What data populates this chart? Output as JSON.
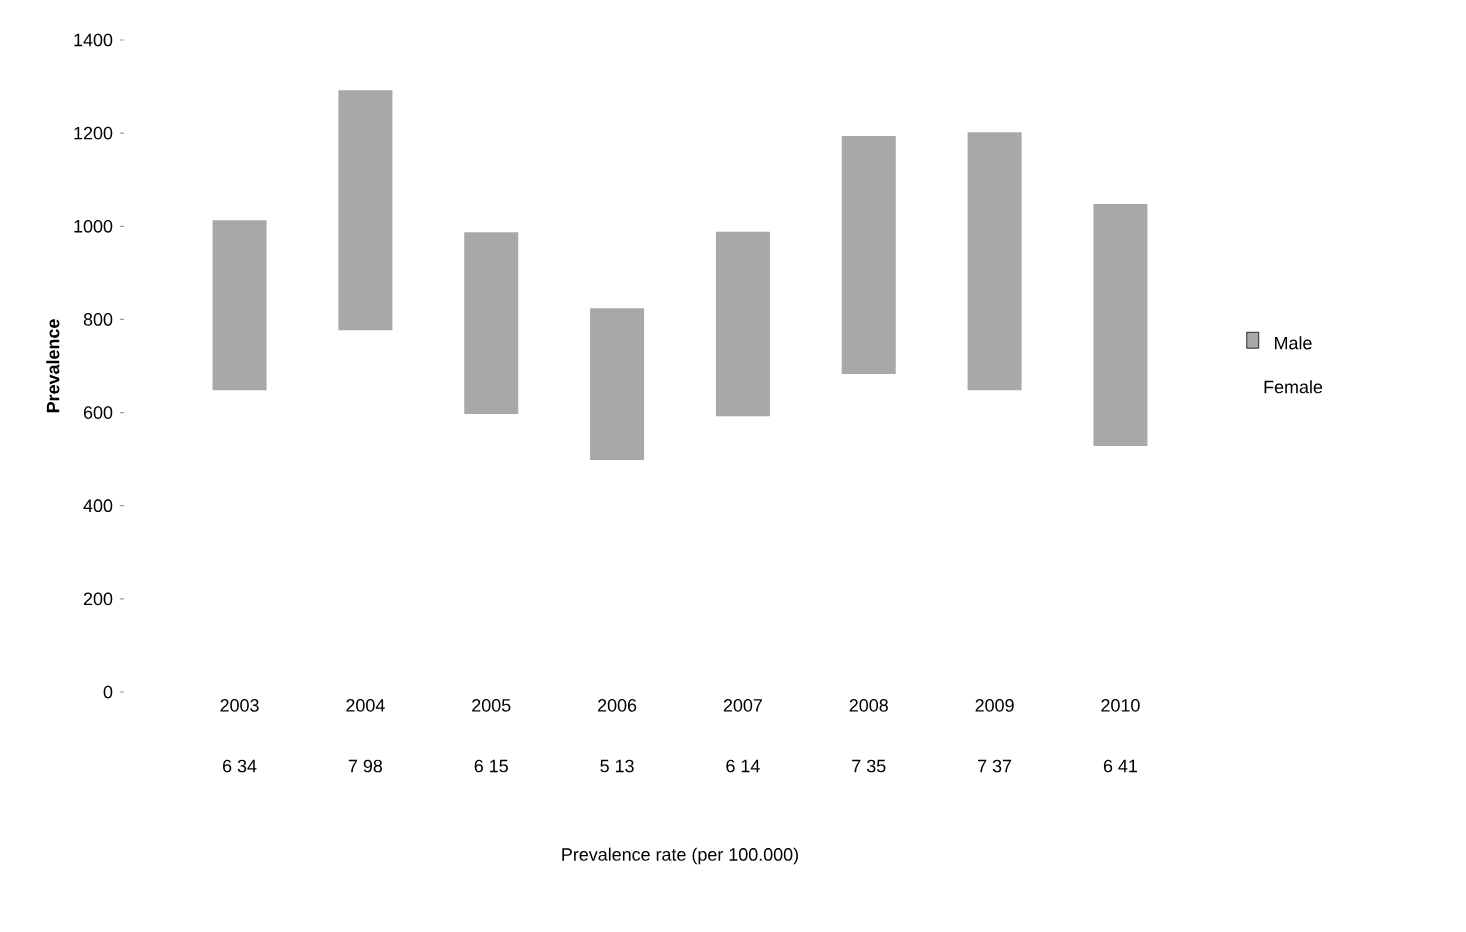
{
  "chart_data": {
    "type": "bar",
    "ylabel": "Prevalence",
    "categories": [
      "2003",
      "2004",
      "2005",
      "2006",
      "2007",
      "2008",
      "2009",
      "2010"
    ],
    "series": [
      {
        "name": "Male",
        "color": "#a8a8a8",
        "base": [
          648,
          777,
          597,
          498,
          592,
          683,
          648,
          528
        ],
        "values": [
          365,
          515,
          390,
          326,
          396,
          511,
          554,
          520
        ]
      },
      {
        "name": "Female",
        "values": [
          null,
          null,
          null,
          null,
          null,
          null,
          null,
          null
        ]
      }
    ],
    "ylim": [
      0,
      1400
    ],
    "yticks": [
      0,
      200,
      400,
      600,
      800,
      1000,
      1200,
      1400
    ],
    "annotations": [
      "6 34",
      "7 98",
      "6 15",
      "5 13",
      "6 14",
      "7 35",
      "7 37",
      "6 41",
      "Prevalence rate (per 100.000)"
    ],
    "legend": "right",
    "grid": false
  }
}
